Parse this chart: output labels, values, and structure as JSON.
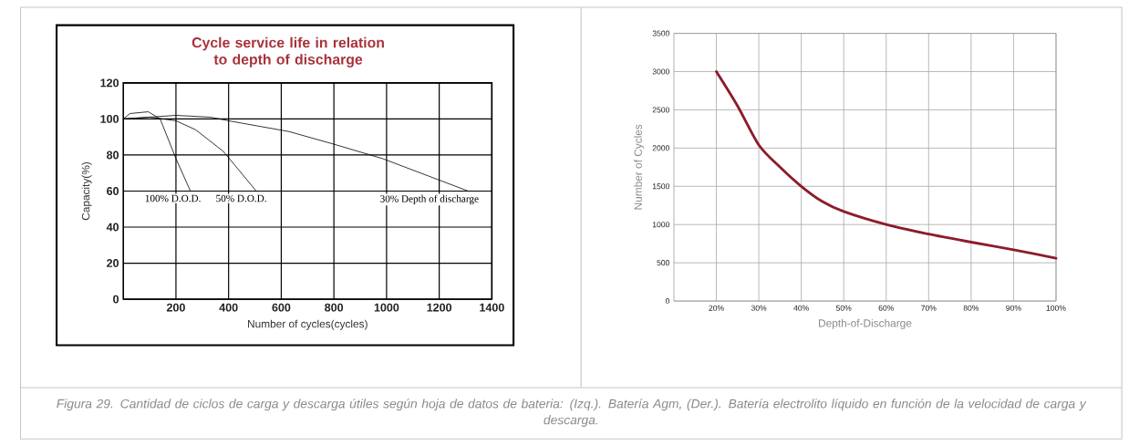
{
  "chart_data": [
    {
      "type": "line",
      "title": "Cycle service life in relation to depth of discharge",
      "xlabel": "Number of cycles(cycles)",
      "ylabel": "Capacity(%)",
      "xlim": [
        0,
        1400
      ],
      "ylim": [
        0,
        120
      ],
      "xticks": [
        200,
        400,
        600,
        800,
        1000,
        1200,
        1400
      ],
      "yticks": [
        0,
        20,
        40,
        60,
        80,
        100,
        120
      ],
      "grid": true,
      "series": [
        {
          "name": "100% D.O.D.",
          "color": "#000000",
          "x": [
            0,
            25,
            95,
            140,
            200,
            255
          ],
          "values": [
            100,
            103,
            104,
            100,
            78,
            60
          ]
        },
        {
          "name": "50% D.O.D.",
          "color": "#000000",
          "x": [
            0,
            100,
            200,
            275,
            380,
            505
          ],
          "values": [
            100,
            101,
            99,
            94,
            82,
            60
          ]
        },
        {
          "name": "30% Depth of discharge",
          "color": "#000000",
          "x": [
            0,
            200,
            330,
            400,
            630,
            800,
            985,
            1310
          ],
          "values": [
            100,
            102,
            101,
            99,
            93,
            86,
            78,
            60
          ]
        }
      ],
      "annotations": [
        "Figura 29. Cantidad de ciclos de carga y descarga útiles según hoja de datos de bateria: (Izq.). Batería Agm, (Der.). Batería electrolito líquido en función de la velocidad de carga y descarga."
      ]
    },
    {
      "type": "line",
      "xlabel": "Depth-of-Discharge",
      "ylabel": "Number of Cycles",
      "xlim": [
        10,
        100
      ],
      "ylim": [
        0,
        3500
      ],
      "xticks": [
        {
          "value": 20,
          "label": "20%"
        },
        {
          "value": 30,
          "label": "30%"
        },
        {
          "value": 40,
          "label": "40%"
        },
        {
          "value": 50,
          "label": "50%"
        },
        {
          "value": 60,
          "label": "60%"
        },
        {
          "value": 70,
          "label": "70%"
        },
        {
          "value": 80,
          "label": "80%"
        },
        {
          "value": 90,
          "label": "90%"
        },
        {
          "value": 100,
          "label": "100%"
        }
      ],
      "yticks": [
        0,
        500,
        1000,
        1500,
        2000,
        2500,
        3000,
        3500
      ],
      "grid": true,
      "color": "#8c1c2b",
      "x": [
        20,
        25,
        30,
        35,
        40,
        45,
        50,
        60,
        70,
        80,
        90,
        100
      ],
      "values": [
        3000,
        2550,
        2040,
        1750,
        1500,
        1300,
        1170,
        1000,
        875,
        770,
        670,
        560
      ]
    }
  ]
}
